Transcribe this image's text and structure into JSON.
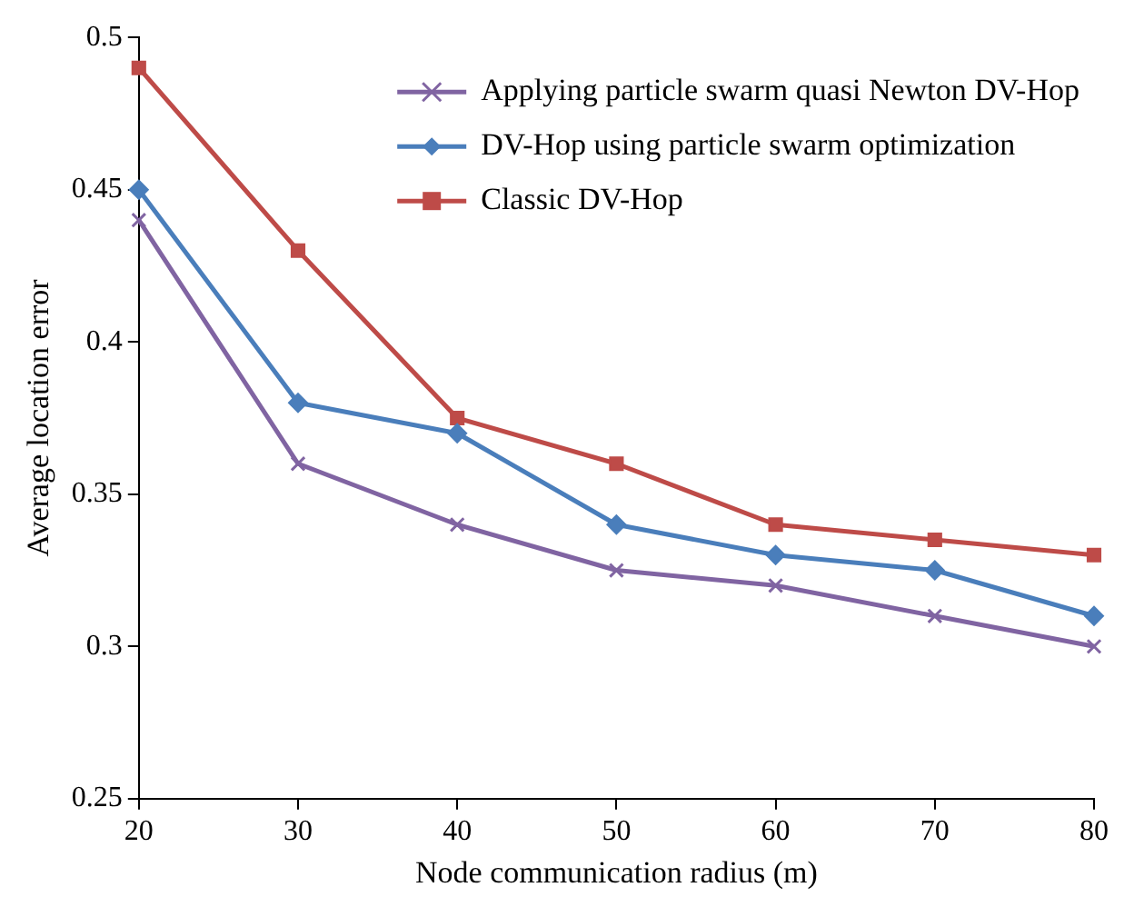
{
  "chart_data": {
    "type": "line",
    "xlabel": "Node communication radius (m)",
    "ylabel": "Average location error",
    "x": [
      20,
      30,
      40,
      50,
      60,
      70,
      80
    ],
    "xlim": [
      20,
      80
    ],
    "xticks": [
      20,
      30,
      40,
      50,
      60,
      70,
      80
    ],
    "ylim": [
      0.25,
      0.5
    ],
    "yticks": [
      0.25,
      0.3,
      0.35,
      0.4,
      0.45,
      0.5
    ],
    "grid": false,
    "legend": "top right",
    "line_style": "solid",
    "series": [
      {
        "name": "Applying particle swarm quasi Newton DV-Hop",
        "color": "#8064a2",
        "marker": "cross",
        "values": [
          0.44,
          0.36,
          0.34,
          0.325,
          0.32,
          0.31,
          0.3
        ]
      },
      {
        "name": "DV-Hop using particle swarm optimization",
        "color": "#4a7ebb",
        "marker": "diamond",
        "values": [
          0.45,
          0.38,
          0.37,
          0.34,
          0.33,
          0.325,
          0.31
        ]
      },
      {
        "name": "Classic DV-Hop",
        "color": "#be4b48",
        "marker": "square",
        "values": [
          0.49,
          0.43,
          0.375,
          0.36,
          0.34,
          0.335,
          0.33
        ]
      }
    ]
  }
}
